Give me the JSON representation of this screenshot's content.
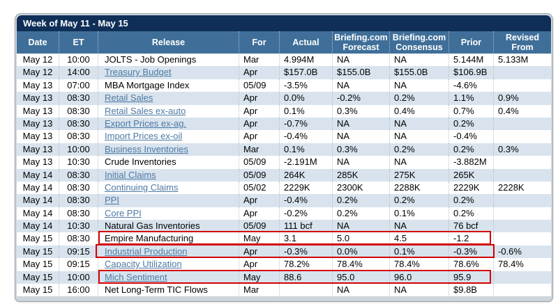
{
  "title": "Week of May 11 - May 15",
  "colors": {
    "title_bar": "#0f2f58",
    "header_bar": "#3f6f99",
    "row_alt": "#d8e3ed",
    "link": "#4d79a4",
    "highlight_box": "#d40000"
  },
  "table": {
    "columns": [
      {
        "key": "date",
        "label": "Date"
      },
      {
        "key": "et",
        "label": "ET"
      },
      {
        "key": "release",
        "label": "Release"
      },
      {
        "key": "for",
        "label": "For"
      },
      {
        "key": "actual",
        "label": "Actual"
      },
      {
        "key": "forecast",
        "label": "Briefing.com Forecast"
      },
      {
        "key": "consensus",
        "label": "Briefing.com Consensus"
      },
      {
        "key": "prior",
        "label": "Prior"
      },
      {
        "key": "revised",
        "label": "Revised From"
      }
    ],
    "rows": [
      {
        "date": "May 12",
        "et": "10:00",
        "release": "JOLTS - Job Openings",
        "link": false,
        "for": "Mar",
        "actual": "4.994M",
        "forecast": "NA",
        "consensus": "NA",
        "prior": "5.144M",
        "revised": "5.133M"
      },
      {
        "date": "May 12",
        "et": "14:00",
        "release": "Treasury Budget",
        "link": true,
        "for": "Apr",
        "actual": "$157.0B",
        "forecast": "$155.0B",
        "consensus": "$155.0B",
        "prior": "$106.9B",
        "revised": ""
      },
      {
        "date": "May 13",
        "et": "07:00",
        "release": "MBA Mortgage Index",
        "link": false,
        "for": "05/09",
        "actual": "-3.5%",
        "forecast": "NA",
        "consensus": "NA",
        "prior": "-4.6%",
        "revised": ""
      },
      {
        "date": "May 13",
        "et": "08:30",
        "release": "Retail Sales",
        "link": true,
        "for": "Apr",
        "actual": "0.0%",
        "forecast": "-0.2%",
        "consensus": "0.2%",
        "prior": "1.1%",
        "revised": "0.9%"
      },
      {
        "date": "May 13",
        "et": "08:30",
        "release": "Retail Sales ex-auto",
        "link": true,
        "for": "Apr",
        "actual": "0.1%",
        "forecast": "0.3%",
        "consensus": "0.4%",
        "prior": "0.7%",
        "revised": "0.4%"
      },
      {
        "date": "May 13",
        "et": "08:30",
        "release": "Export Prices ex-ag.",
        "link": true,
        "for": "Apr",
        "actual": "-0.7%",
        "forecast": "NA",
        "consensus": "NA",
        "prior": "0.2%",
        "revised": ""
      },
      {
        "date": "May 13",
        "et": "08:30",
        "release": "Import Prices ex-oil",
        "link": true,
        "for": "Apr",
        "actual": "-0.4%",
        "forecast": "NA",
        "consensus": "NA",
        "prior": "-0.4%",
        "revised": ""
      },
      {
        "date": "May 13",
        "et": "10:00",
        "release": "Business Inventories",
        "link": true,
        "for": "Mar",
        "actual": "0.1%",
        "forecast": "0.3%",
        "consensus": "0.2%",
        "prior": "0.2%",
        "revised": "0.3%"
      },
      {
        "date": "May 13",
        "et": "10:30",
        "release": "Crude Inventories",
        "link": false,
        "for": "05/09",
        "actual": "-2.191M",
        "forecast": "NA",
        "consensus": "NA",
        "prior": "-3.882M",
        "revised": ""
      },
      {
        "date": "May 14",
        "et": "08:30",
        "release": "Initial Claims",
        "link": true,
        "for": "05/09",
        "actual": "264K",
        "forecast": "285K",
        "consensus": "275K",
        "prior": "265K",
        "revised": ""
      },
      {
        "date": "May 14",
        "et": "08:30",
        "release": "Continuing Claims",
        "link": true,
        "for": "05/02",
        "actual": "2229K",
        "forecast": "2300K",
        "consensus": "2288K",
        "prior": "2229K",
        "revised": "2228K"
      },
      {
        "date": "May 14",
        "et": "08:30",
        "release": "PPI",
        "link": true,
        "for": "Apr",
        "actual": "-0.4%",
        "forecast": "0.2%",
        "consensus": "0.2%",
        "prior": "0.2%",
        "revised": ""
      },
      {
        "date": "May 14",
        "et": "08:30",
        "release": "Core PPI",
        "link": true,
        "for": "Apr",
        "actual": "-0.2%",
        "forecast": "0.2%",
        "consensus": "0.1%",
        "prior": "0.2%",
        "revised": ""
      },
      {
        "date": "May 14",
        "et": "10:30",
        "release": "Natural Gas Inventories",
        "link": false,
        "for": "05/09",
        "actual": "111 bcf",
        "forecast": "NA",
        "consensus": "NA",
        "prior": "76 bcf",
        "revised": ""
      },
      {
        "date": "May 15",
        "et": "08:30",
        "release": "Empire Manufacturing",
        "link": false,
        "for": "May",
        "actual": "3.1",
        "forecast": "5.0",
        "consensus": "4.5",
        "prior": "-1.2",
        "revised": "",
        "highlight": "a"
      },
      {
        "date": "May 15",
        "et": "09:15",
        "release": "Industrial Production",
        "link": true,
        "for": "Apr",
        "actual": "-0.3%",
        "forecast": "0.0%",
        "consensus": "0.1%",
        "prior": "-0.3%",
        "revised": "-0.6%",
        "highlight": "b"
      },
      {
        "date": "May 15",
        "et": "09:15",
        "release": "Capacity Utilization",
        "link": true,
        "for": "Apr",
        "actual": "78.2%",
        "forecast": "78.4%",
        "consensus": "78.4%",
        "prior": "78.6%",
        "revised": "78.4%"
      },
      {
        "date": "May 15",
        "et": "10:00",
        "release": "Mich Sentiment",
        "link": true,
        "for": "May",
        "actual": "88.6",
        "forecast": "95.0",
        "consensus": "96.0",
        "prior": "95.9",
        "revised": "",
        "highlight": "c"
      },
      {
        "date": "May 15",
        "et": "16:00",
        "release": "Net Long-Term TIC Flows",
        "link": false,
        "for": "Mar",
        "actual": "",
        "forecast": "NA",
        "consensus": "NA",
        "prior": "$9.8B",
        "revised": ""
      }
    ]
  }
}
